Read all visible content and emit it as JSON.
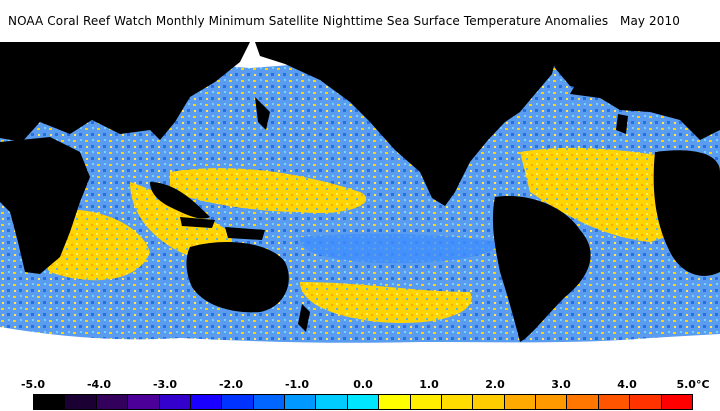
{
  "header": {
    "title": "NOAA Coral Reef Watch Monthly Minimum Satellite Nighttime Sea Surface Temperature Anomalies",
    "date": "May 2010"
  },
  "colorbar": {
    "unit": "°C",
    "ticks": [
      {
        "value": -5.0,
        "label": "-5.0"
      },
      {
        "value": -4.0,
        "label": "-4.0"
      },
      {
        "value": -3.0,
        "label": "-3.0"
      },
      {
        "value": -2.0,
        "label": "-2.0"
      },
      {
        "value": -1.0,
        "label": "-1.0"
      },
      {
        "value": 0.0,
        "label": "0.0"
      },
      {
        "value": 1.0,
        "label": "1.0"
      },
      {
        "value": 2.0,
        "label": "2.0"
      },
      {
        "value": 3.0,
        "label": "3.0"
      },
      {
        "value": 4.0,
        "label": "4.0"
      },
      {
        "value": 5.0,
        "label": "5.0"
      }
    ],
    "range": [
      -5.0,
      5.0
    ],
    "colors": [
      "#000000",
      "#1a0033",
      "#33005c",
      "#4d0099",
      "#3300cc",
      "#1a00ff",
      "#0033ff",
      "#0066ff",
      "#0099ff",
      "#00ccff",
      "#00e6ff",
      "#ffff00",
      "#ffee00",
      "#ffdd00",
      "#ffcc00",
      "#ffaa00",
      "#ff9900",
      "#ff7700",
      "#ff5500",
      "#ff3300",
      "#ff0000"
    ]
  },
  "map_colors": {
    "land": "#000000",
    "ice": "#ffffff",
    "ocean_cool": "#4a86e8",
    "ocean_warm": "#ffd400"
  }
}
